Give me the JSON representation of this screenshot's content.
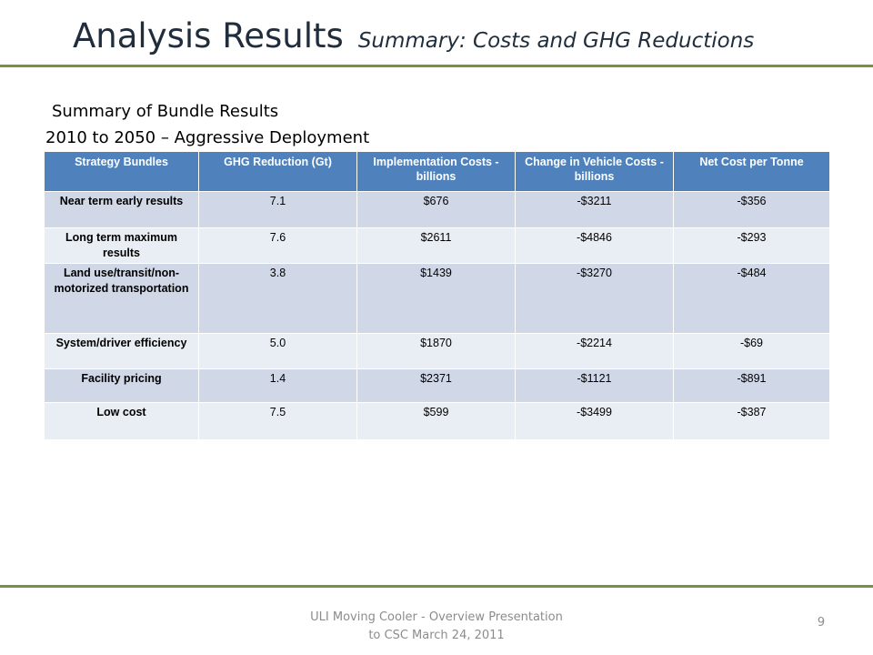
{
  "slide": {
    "title": "Analysis Results",
    "subtitle": "Summary: Costs and GHG Reductions",
    "heading1": "Summary of Bundle Results",
    "heading2": "2010 to 2050 – Aggressive Deployment",
    "accent_color": "#76923c",
    "header_color": "#4f81bd"
  },
  "table": {
    "headers": [
      "Strategy Bundles",
      "GHG Reduction (Gt)",
      "Implementation Costs - billions",
      "Change in Vehicle Costs - billions",
      "Net Cost per Tonne"
    ],
    "rows": [
      [
        "Near term early results",
        "7.1",
        "$676",
        "-$3211",
        "-$356"
      ],
      [
        "Long term maximum results",
        "7.6",
        "$2611",
        "-$4846",
        "-$293"
      ],
      [
        "Land use/transit/non-motorized transportation",
        "3.8",
        "$1439",
        "-$3270",
        "-$484"
      ],
      [
        "System/driver efficiency",
        "5.0",
        "$1870",
        "-$2214",
        "-$69"
      ],
      [
        "Facility pricing",
        "1.4",
        "$2371",
        "-$1121",
        "-$891"
      ],
      [
        "Low cost",
        "7.5",
        "$599",
        "-$3499",
        "-$387"
      ]
    ]
  },
  "footer": {
    "line1": "ULI Moving Cooler - Overview Presentation",
    "line2": "to CSC March 24, 2011",
    "page_number": "9"
  }
}
